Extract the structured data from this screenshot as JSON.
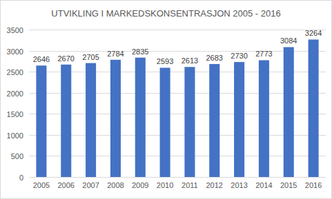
{
  "chart_data": {
    "type": "bar",
    "title": "UTVIKLING I MARKEDSKONSENTRASJON 2005 - 2016",
    "categories": [
      "2005",
      "2006",
      "2007",
      "2008",
      "2009",
      "2010",
      "2011",
      "2012",
      "2013",
      "2014",
      "2015",
      "2016"
    ],
    "values": [
      2646,
      2670,
      2705,
      2784,
      2835,
      2593,
      2613,
      2683,
      2730,
      2773,
      3084,
      3264
    ],
    "color": "#4472c4",
    "ylim": [
      0,
      3500
    ],
    "yticks": [
      0,
      500,
      1000,
      1500,
      2000,
      2500,
      3000,
      3500
    ],
    "grid": true,
    "data_labels": true
  }
}
